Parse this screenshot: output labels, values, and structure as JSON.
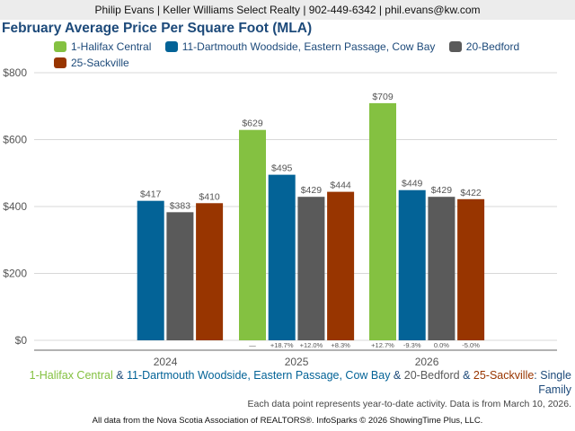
{
  "header": {
    "contact": "Philip Evans | Keller Williams Select Realty | 902-449-6342 | phil.evans@kw.com"
  },
  "colors": {
    "halifax": "#84c141",
    "dartmouth": "#036397",
    "bedford": "#5a5a5a",
    "sackville": "#983500",
    "title": "#1d4a7a"
  },
  "chart_data": {
    "type": "bar",
    "title": "February Average Price Per Square Foot (MLA)",
    "xlabel": "",
    "ylabel": "",
    "ylim": [
      0,
      800
    ],
    "yticks": [
      0,
      200,
      400,
      600,
      800
    ],
    "ytick_labels": [
      "$0",
      "$200",
      "$400",
      "$600",
      "$800"
    ],
    "grid": true,
    "legend_placement": "top",
    "categories": [
      "2024",
      "2025",
      "2026"
    ],
    "series": [
      {
        "name": "1-Halifax Central",
        "color": "#84c141",
        "values": [
          null,
          629,
          709
        ],
        "labels": [
          null,
          "$629",
          "$709"
        ],
        "changes": [
          null,
          "—",
          "+12.7%"
        ]
      },
      {
        "name": "11-Dartmouth Woodside, Eastern Passage, Cow Bay",
        "color": "#036397",
        "values": [
          417,
          495,
          449
        ],
        "labels": [
          "$417",
          "$495",
          "$449"
        ],
        "changes": [
          null,
          "+18.7%",
          "-9.3%"
        ]
      },
      {
        "name": "20-Bedford",
        "color": "#5a5a5a",
        "values": [
          383,
          429,
          429
        ],
        "labels": [
          "$383",
          "$429",
          "$429"
        ],
        "changes": [
          null,
          "+12.0%",
          "0.0%"
        ]
      },
      {
        "name": "25-Sackville",
        "color": "#983500",
        "values": [
          410,
          444,
          422
        ],
        "labels": [
          "$410",
          "$444",
          "$422"
        ],
        "changes": [
          null,
          "+8.3%",
          "-5.0%"
        ]
      }
    ]
  },
  "caption": {
    "parts": [
      "1-Halifax Central",
      " & ",
      "11-Dartmouth Woodside, Eastern Passage, Cow Bay",
      " & ",
      "20-Bedford",
      " & ",
      "25-Sackville",
      ": Single Family"
    ]
  },
  "note": "Each data point represents year-to-date activity. Data is from March 10, 2026.",
  "footer": "All data from the Nova Scotia Association of REALTORS®. InfoSparks © 2026 ShowingTime Plus, LLC."
}
